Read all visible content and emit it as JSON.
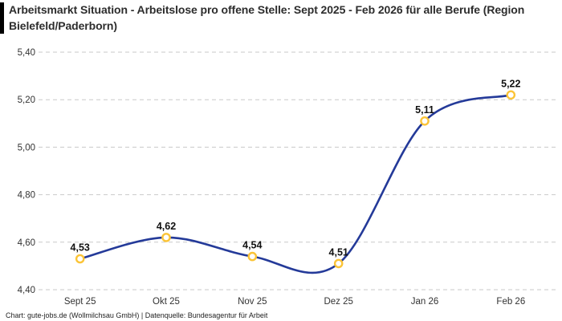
{
  "header": {
    "title": "Arbeitsmarkt Situation - Arbeitslose pro offene Stelle: Sept 2025 - Feb 2026 für alle Berufe (Region Bielefeld/Paderborn)"
  },
  "chart_data": {
    "type": "line",
    "title": "Arbeitsmarkt Situation - Arbeitslose pro offene Stelle: Sept 2025 - Feb 2026 für alle Berufe (Region Bielefeld/Paderborn)",
    "categories": [
      "Sept 25",
      "Okt 25",
      "Nov 25",
      "Dez 25",
      "Jan 26",
      "Feb 26"
    ],
    "values": [
      4.53,
      4.62,
      4.54,
      4.51,
      5.11,
      5.22
    ],
    "value_labels": [
      "4,53",
      "4,62",
      "4,54",
      "4,51",
      "5,11",
      "5,22"
    ],
    "y_ticks": [
      4.4,
      4.6,
      4.8,
      5.0,
      5.2,
      5.4
    ],
    "y_tick_labels": [
      "4,40",
      "4,60",
      "4,80",
      "5,00",
      "5,20",
      "5,40"
    ],
    "ylim": [
      4.4,
      5.4
    ],
    "xlabel": "",
    "ylabel": "",
    "grid": "horizontal-dashed",
    "legend": "none",
    "line_style": "smooth-spline",
    "colors": {
      "line": "#243a99",
      "marker_ring": "#fbc437",
      "marker_fill": "#ffffff",
      "grid": "#c9c9c9",
      "title_bar": "#000000",
      "tick_text": "#333333",
      "value_text": "#111111"
    }
  },
  "footer": {
    "credit": "Chart: gute-jobs.de (Wollmilchsau GmbH) | Datenquelle: Bundesagentur für Arbeit"
  }
}
